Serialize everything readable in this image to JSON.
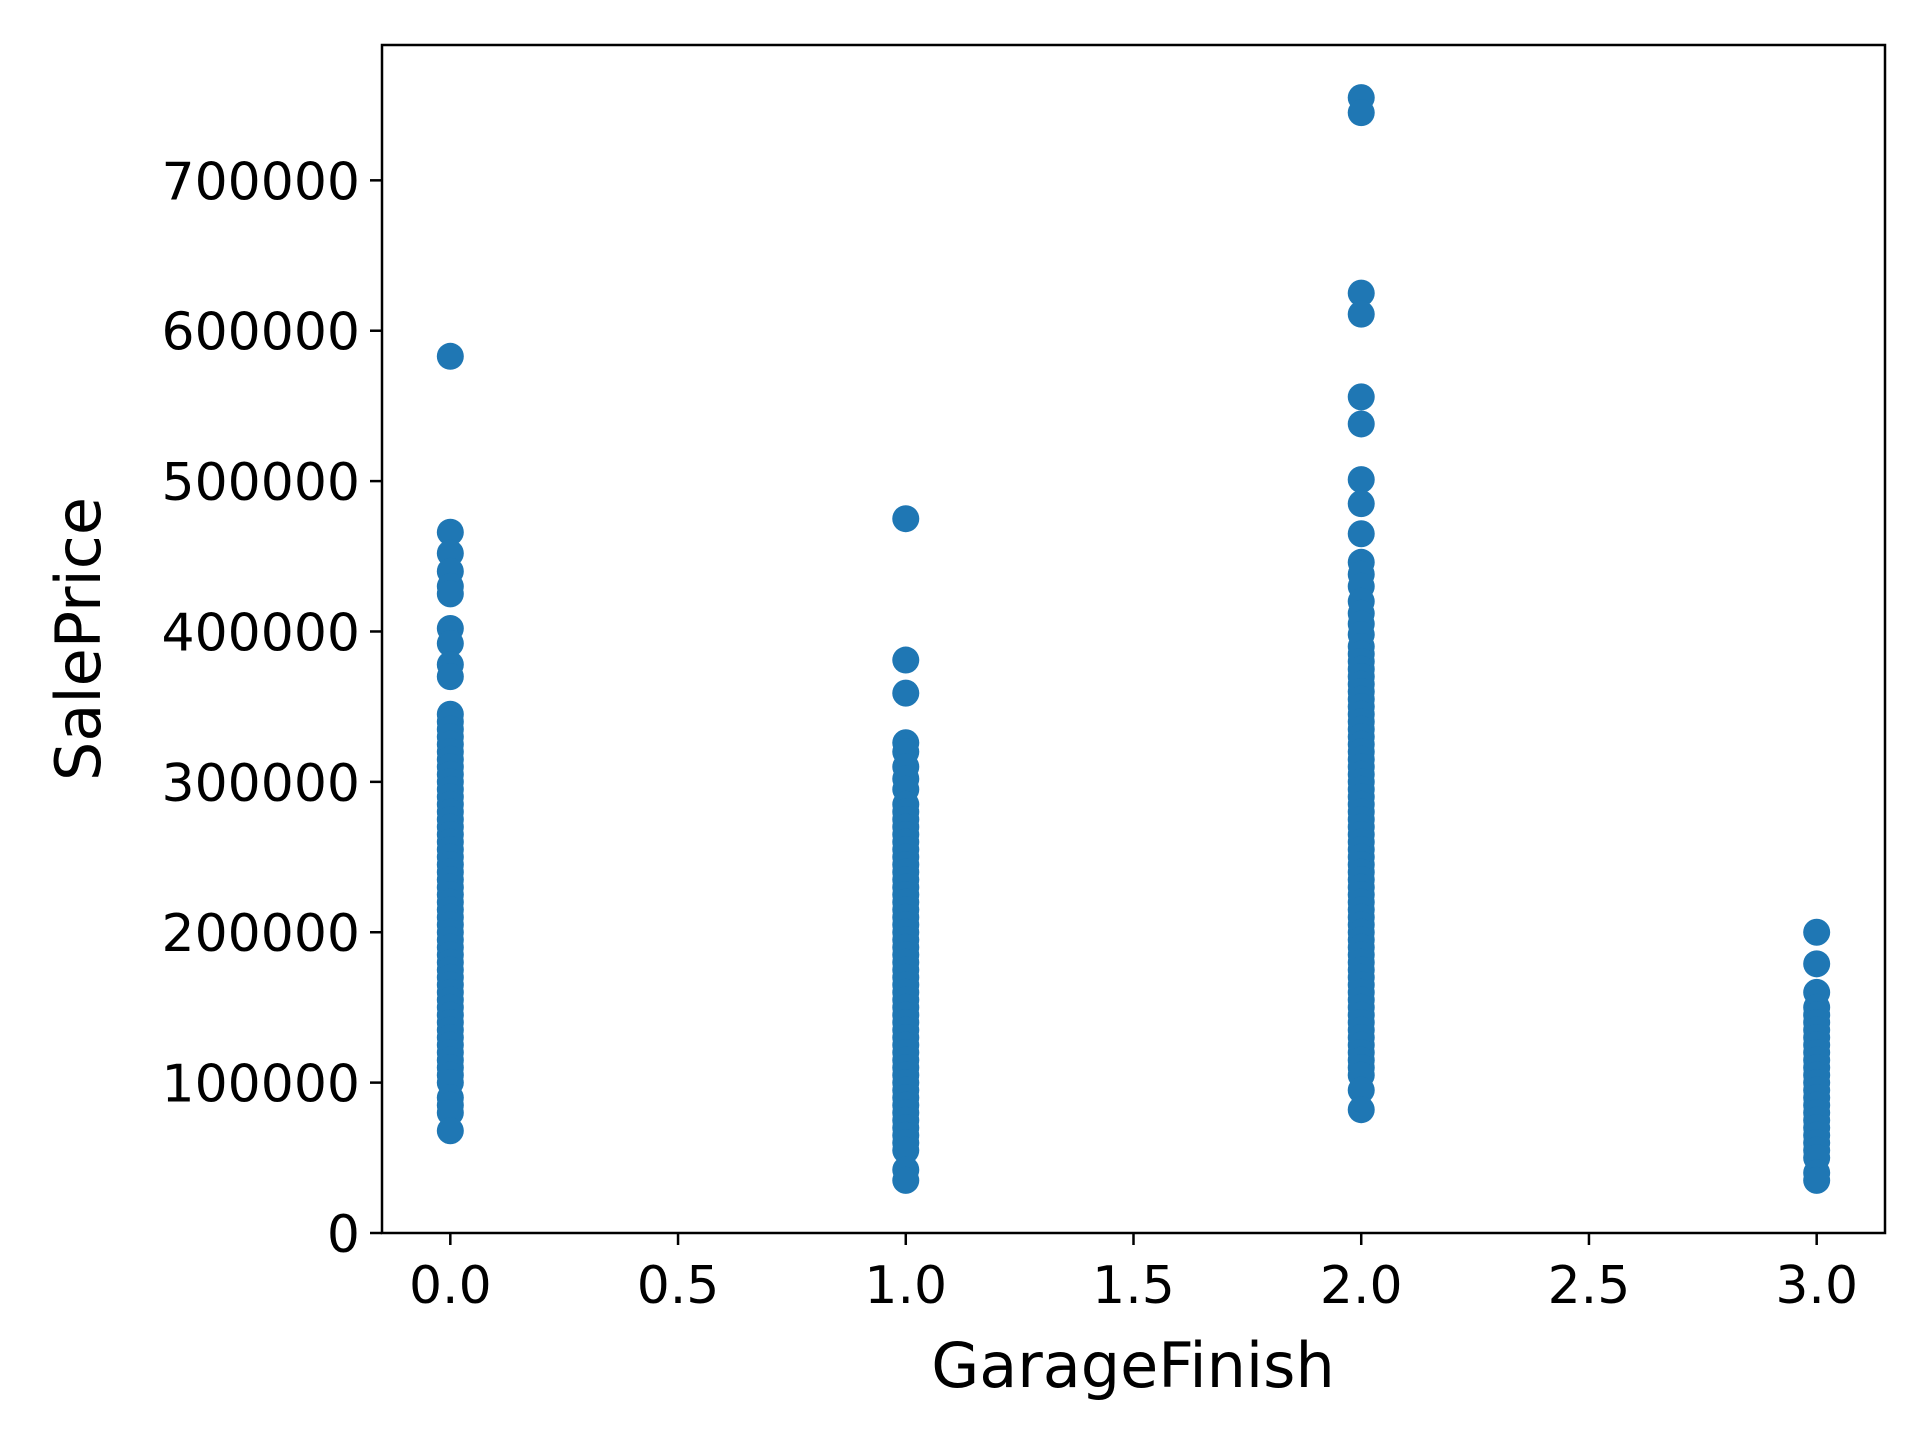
{
  "chart_data": {
    "type": "scatter",
    "xlabel": "GarageFinish",
    "ylabel": "SalePrice",
    "xlim": [
      -0.15,
      3.15
    ],
    "ylim": [
      0,
      790000
    ],
    "x_ticks": [
      0.0,
      0.5,
      1.0,
      1.5,
      2.0,
      2.5,
      3.0
    ],
    "x_tick_labels": [
      "0.0",
      "0.5",
      "1.0",
      "1.5",
      "2.0",
      "2.5",
      "3.0"
    ],
    "y_ticks": [
      0,
      100000,
      200000,
      300000,
      400000,
      500000,
      600000,
      700000
    ],
    "y_tick_labels": [
      "0",
      "100000",
      "200000",
      "300000",
      "400000",
      "500000",
      "600000",
      "700000"
    ],
    "grid": false,
    "legend": "none",
    "marker_color": "#1f77b4",
    "series": [
      {
        "x": 0,
        "y": [
          583000,
          466000,
          452000,
          440000,
          430000,
          425000,
          402000,
          392000,
          378000,
          370000,
          345000,
          340000,
          335000,
          330000,
          325000,
          320000,
          315000,
          310000,
          305000,
          300000,
          295000,
          290000,
          285000,
          280000,
          275000,
          270000,
          265000,
          260000,
          255000,
          250000,
          245000,
          240000,
          235000,
          230000,
          225000,
          220000,
          215000,
          210000,
          205000,
          200000,
          195000,
          190000,
          185000,
          180000,
          175000,
          170000,
          165000,
          160000,
          155000,
          150000,
          145000,
          140000,
          135000,
          130000,
          125000,
          120000,
          115000,
          110000,
          105000,
          100000,
          90000,
          85000,
          80000,
          68000
        ]
      },
      {
        "x": 1,
        "y": [
          475000,
          381000,
          359000,
          326000,
          320000,
          310000,
          302000,
          295000,
          285000,
          280000,
          275000,
          270000,
          265000,
          260000,
          255000,
          250000,
          245000,
          240000,
          235000,
          230000,
          225000,
          220000,
          215000,
          210000,
          205000,
          200000,
          195000,
          190000,
          185000,
          180000,
          175000,
          170000,
          165000,
          160000,
          155000,
          150000,
          145000,
          140000,
          135000,
          130000,
          125000,
          120000,
          115000,
          110000,
          105000,
          100000,
          95000,
          90000,
          85000,
          80000,
          75000,
          70000,
          65000,
          60000,
          55000,
          42000,
          35000
        ]
      },
      {
        "x": 2,
        "y": [
          755000,
          745000,
          625000,
          611000,
          556000,
          538000,
          501000,
          485000,
          465000,
          446000,
          438000,
          430000,
          420000,
          412000,
          405000,
          398000,
          390000,
          385000,
          380000,
          375000,
          370000,
          365000,
          360000,
          355000,
          350000,
          345000,
          340000,
          335000,
          330000,
          325000,
          320000,
          315000,
          310000,
          305000,
          300000,
          295000,
          290000,
          285000,
          280000,
          275000,
          270000,
          265000,
          260000,
          255000,
          250000,
          245000,
          240000,
          235000,
          230000,
          225000,
          220000,
          215000,
          210000,
          205000,
          200000,
          195000,
          190000,
          185000,
          180000,
          175000,
          170000,
          165000,
          160000,
          155000,
          150000,
          145000,
          140000,
          135000,
          130000,
          125000,
          120000,
          115000,
          110000,
          105000,
          95000,
          82000
        ]
      },
      {
        "x": 3,
        "y": [
          200000,
          179000,
          160000,
          150000,
          145000,
          140000,
          135000,
          130000,
          125000,
          120000,
          115000,
          110000,
          105000,
          100000,
          95000,
          90000,
          85000,
          80000,
          75000,
          70000,
          65000,
          60000,
          55000,
          50000,
          40000,
          35000
        ]
      }
    ]
  }
}
